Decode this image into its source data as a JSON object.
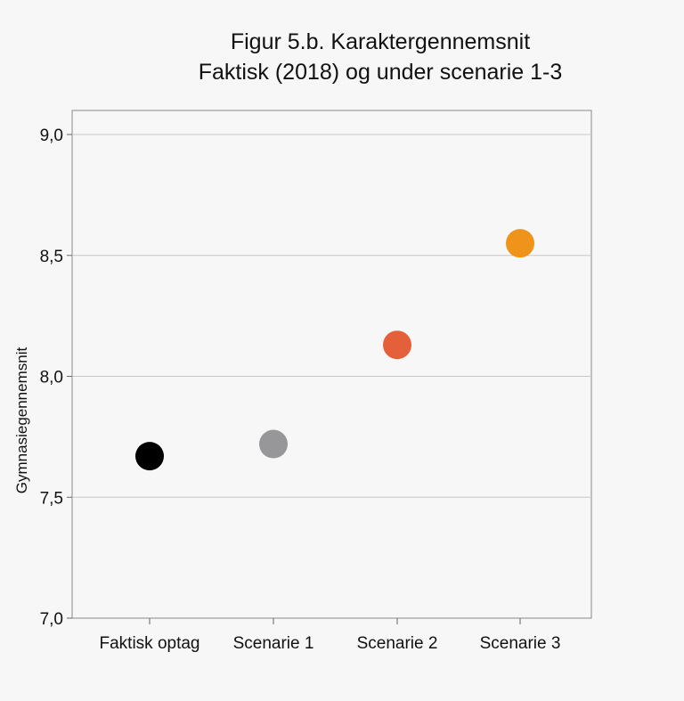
{
  "chart_data": {
    "type": "scatter",
    "title": "Figur 5.b. Karaktergennemsnit",
    "subtitle": "Faktisk (2018) og under scenarie 1-3",
    "xlabel": "",
    "ylabel": "Gymnasiegennemsnit",
    "categories": [
      "Faktisk optag",
      "Scenarie 1",
      "Scenarie 2",
      "Scenarie 3"
    ],
    "values": [
      7.67,
      7.72,
      8.13,
      8.55
    ],
    "point_colors": [
      "#000000",
      "#97979a",
      "#e4603a",
      "#f0931a"
    ],
    "ylim": [
      7.0,
      9.0
    ],
    "yticks": [
      7.0,
      7.5,
      8.0,
      8.5,
      9.0
    ],
    "ytick_labels": [
      "7,0",
      "7,5",
      "8,0",
      "8,5",
      "9,0"
    ],
    "grid": true,
    "legend": "none"
  }
}
